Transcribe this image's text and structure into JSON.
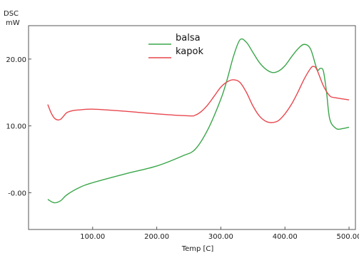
{
  "chart_data": {
    "type": "line",
    "title": "",
    "ylabel_top": "DSC",
    "ylabel_unit": "mW",
    "xlabel": "Temp [C]",
    "xlim": [
      0,
      510
    ],
    "ylim": [
      -5.5,
      25
    ],
    "x_ticks": [
      100,
      200,
      300,
      400,
      500
    ],
    "x_tick_labels": [
      "100.00",
      "200.00",
      "300.00",
      "400.00",
      "500.00"
    ],
    "y_ticks": [
      0,
      10,
      20
    ],
    "y_tick_labels": [
      "-0.00",
      "10.00",
      "20.00"
    ],
    "grid": false,
    "legend_position": "top-center",
    "series": [
      {
        "name": "balsa",
        "color": "#3aa64a",
        "x": [
          30,
          40,
          50,
          60,
          80,
          100,
          150,
          200,
          240,
          260,
          280,
          300,
          310,
          320,
          330,
          340,
          350,
          360,
          370,
          380,
          390,
          400,
          410,
          420,
          430,
          440,
          450,
          455,
          460,
          465,
          470,
          480,
          490,
          500
        ],
        "y": [
          -1.0,
          -1.5,
          -1.2,
          -0.3,
          0.8,
          1.5,
          2.8,
          4.0,
          5.5,
          6.5,
          9.5,
          14.0,
          17.0,
          20.5,
          22.9,
          22.5,
          21.0,
          19.5,
          18.5,
          18.0,
          18.2,
          19.0,
          20.3,
          21.5,
          22.2,
          21.5,
          18.5,
          18.6,
          18.2,
          15.0,
          11.0,
          9.6,
          9.6,
          9.8
        ]
      },
      {
        "name": "kapok",
        "color": "#e8474e",
        "x": [
          30,
          35,
          40,
          45,
          50,
          55,
          60,
          70,
          80,
          100,
          150,
          200,
          250,
          260,
          270,
          280,
          290,
          300,
          310,
          320,
          330,
          340,
          350,
          360,
          370,
          380,
          390,
          400,
          410,
          420,
          430,
          440,
          445,
          450,
          460,
          470,
          480,
          500
        ],
        "y": [
          13.2,
          12.0,
          11.2,
          10.9,
          11.0,
          11.5,
          12.0,
          12.3,
          12.4,
          12.5,
          12.2,
          11.8,
          11.5,
          11.6,
          12.2,
          13.2,
          14.5,
          15.8,
          16.6,
          16.9,
          16.5,
          15.0,
          13.0,
          11.5,
          10.7,
          10.5,
          10.8,
          11.8,
          13.2,
          15.0,
          17.0,
          18.6,
          18.9,
          18.4,
          16.0,
          14.5,
          14.2,
          13.9
        ]
      }
    ]
  }
}
